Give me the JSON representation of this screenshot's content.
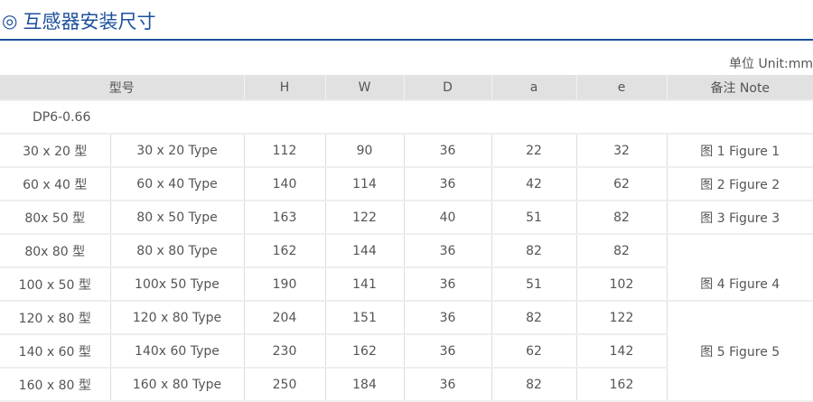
{
  "title": "互感器安装尺寸",
  "title_icon": "double-circle-icon",
  "unit": "单位 Unit:mm",
  "headers": {
    "model": "型号",
    "h": "H",
    "w": "W",
    "d": "D",
    "a": "a",
    "e": "e",
    "note": "备注 Note"
  },
  "series": "DP6-0.66",
  "rows": [
    {
      "cn": "30 x 20 型",
      "en": "30 x 20 Type",
      "h": "112",
      "w": "90",
      "d": "36",
      "a": "22",
      "e": "32"
    },
    {
      "cn": "60 x 40 型",
      "en": "60 x 40 Type",
      "h": "140",
      "w": "114",
      "d": "36",
      "a": "42",
      "e": "62"
    },
    {
      "cn": "80x 50 型",
      "en": "80 x 50 Type",
      "h": "163",
      "w": "122",
      "d": "40",
      "a": "51",
      "e": "82"
    },
    {
      "cn": "80x 80 型",
      "en": "80 x 80 Type",
      "h": "162",
      "w": "144",
      "d": "36",
      "a": "82",
      "e": "82"
    },
    {
      "cn": "100 x 50 型",
      "en": "100x 50 Type",
      "h": "190",
      "w": "141",
      "d": "36",
      "a": "51",
      "e": "102"
    },
    {
      "cn": "120 x 80 型",
      "en": "120 x 80 Type",
      "h": "204",
      "w": "151",
      "d": "36",
      "a": "82",
      "e": "122"
    },
    {
      "cn": "140 x 60 型",
      "en": "140x 60 Type",
      "h": "230",
      "w": "162",
      "d": "36",
      "a": "62",
      "e": "142"
    },
    {
      "cn": "160 x 80 型",
      "en": "160 x 80 Type",
      "h": "250",
      "w": "184",
      "d": "36",
      "a": "82",
      "e": "162"
    }
  ],
  "notes": [
    "图 1 Figure 1",
    "图 2 Figure 2",
    "图 3 Figure 3",
    "图 4 Figure 4",
    "图 5 Figure 5"
  ]
}
